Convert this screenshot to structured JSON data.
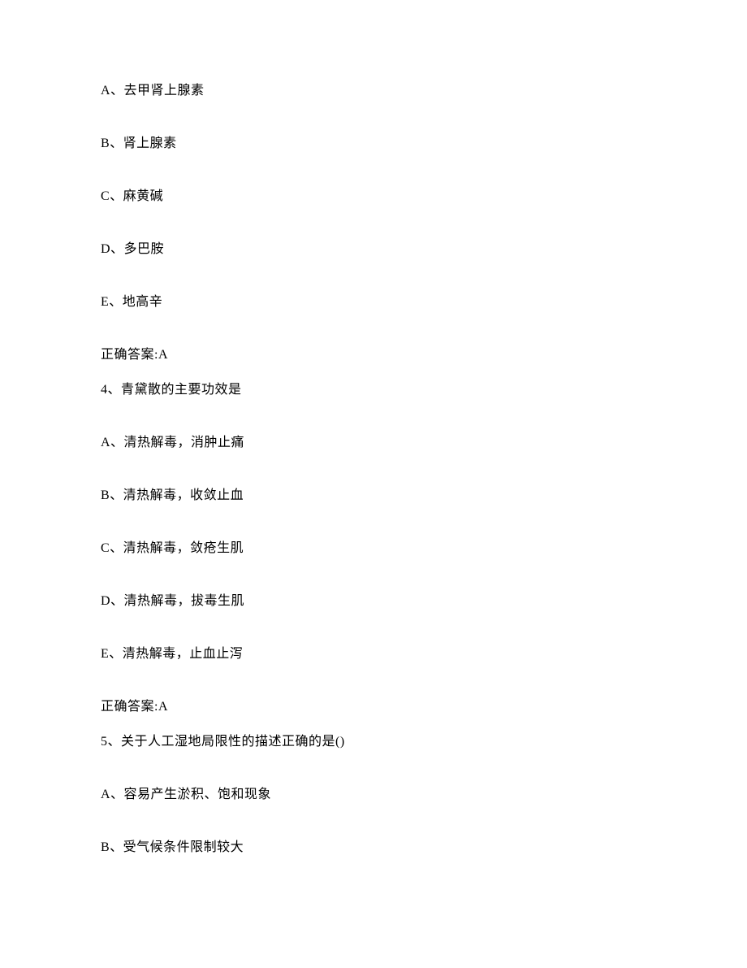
{
  "lines": [
    "A、去甲肾上腺素",
    "B、肾上腺素",
    "C、麻黄碱",
    "D、多巴胺",
    "E、地高辛",
    "正确答案:A",
    "4、青黛散的主要功效是",
    "A、清热解毒，消肿止痛",
    "B、清热解毒，收敛止血",
    "C、清热解毒，敛疮生肌",
    "D、清热解毒，拔毒生肌",
    "E、清热解毒，止血止泻",
    "正确答案:A",
    "5、关于人工湿地局限性的描述正确的是()",
    "A、容易产生淤积、饱和现象",
    "B、受气候条件限制较大"
  ],
  "tightIndices": [
    5,
    12
  ]
}
